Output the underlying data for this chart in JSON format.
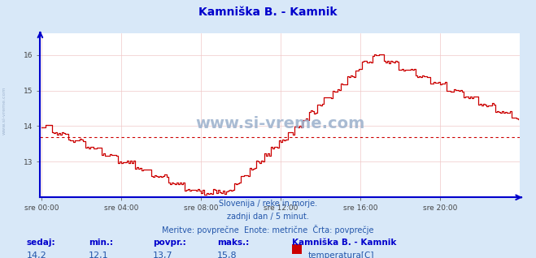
{
  "title": "Kamniška B. - Kamnik",
  "title_color": "#0000cc",
  "bg_color": "#d8e8f8",
  "plot_bg_color": "#ffffff",
  "line_color": "#cc0000",
  "avg_line_color": "#cc0000",
  "avg_value": 13.7,
  "y_ticks": [
    13,
    14,
    15,
    16
  ],
  "ylim_min": 12.0,
  "ylim_max": 16.6,
  "x_ticks": [
    "sre 00:00",
    "sre 04:00",
    "sre 08:00",
    "sre 12:00",
    "sre 16:00",
    "sre 20:00"
  ],
  "x_tick_positions": [
    0,
    48,
    96,
    144,
    192,
    240
  ],
  "num_points": 288,
  "grid_color": "#f0c8c8",
  "axis_color": "#0000cc",
  "tick_label_color": "#444444",
  "watermark": "www.si-vreme.com",
  "watermark_color": "#9ab0cc",
  "side_watermark": "www.si-vreme.com",
  "subtitle1": "Slovenija / reke in morje.",
  "subtitle2": "zadnji dan / 5 minut.",
  "subtitle3": "Meritve: povprečne  Enote: metrične  Črta: povprečje",
  "subtitle_color": "#2255aa",
  "label_color": "#0000cc",
  "value_color": "#2255aa",
  "label_sedaj": "sedaj:",
  "label_min": "min.:",
  "label_povpr": "povpr.:",
  "label_maks": "maks.:",
  "val_sedaj": "14,2",
  "val_min": "12,1",
  "val_povpr": "13,7",
  "val_maks": "15,8",
  "legend_title": "Kamniška B. - Kamnik",
  "legend_label": "temperatura[C]",
  "legend_color": "#cc0000"
}
